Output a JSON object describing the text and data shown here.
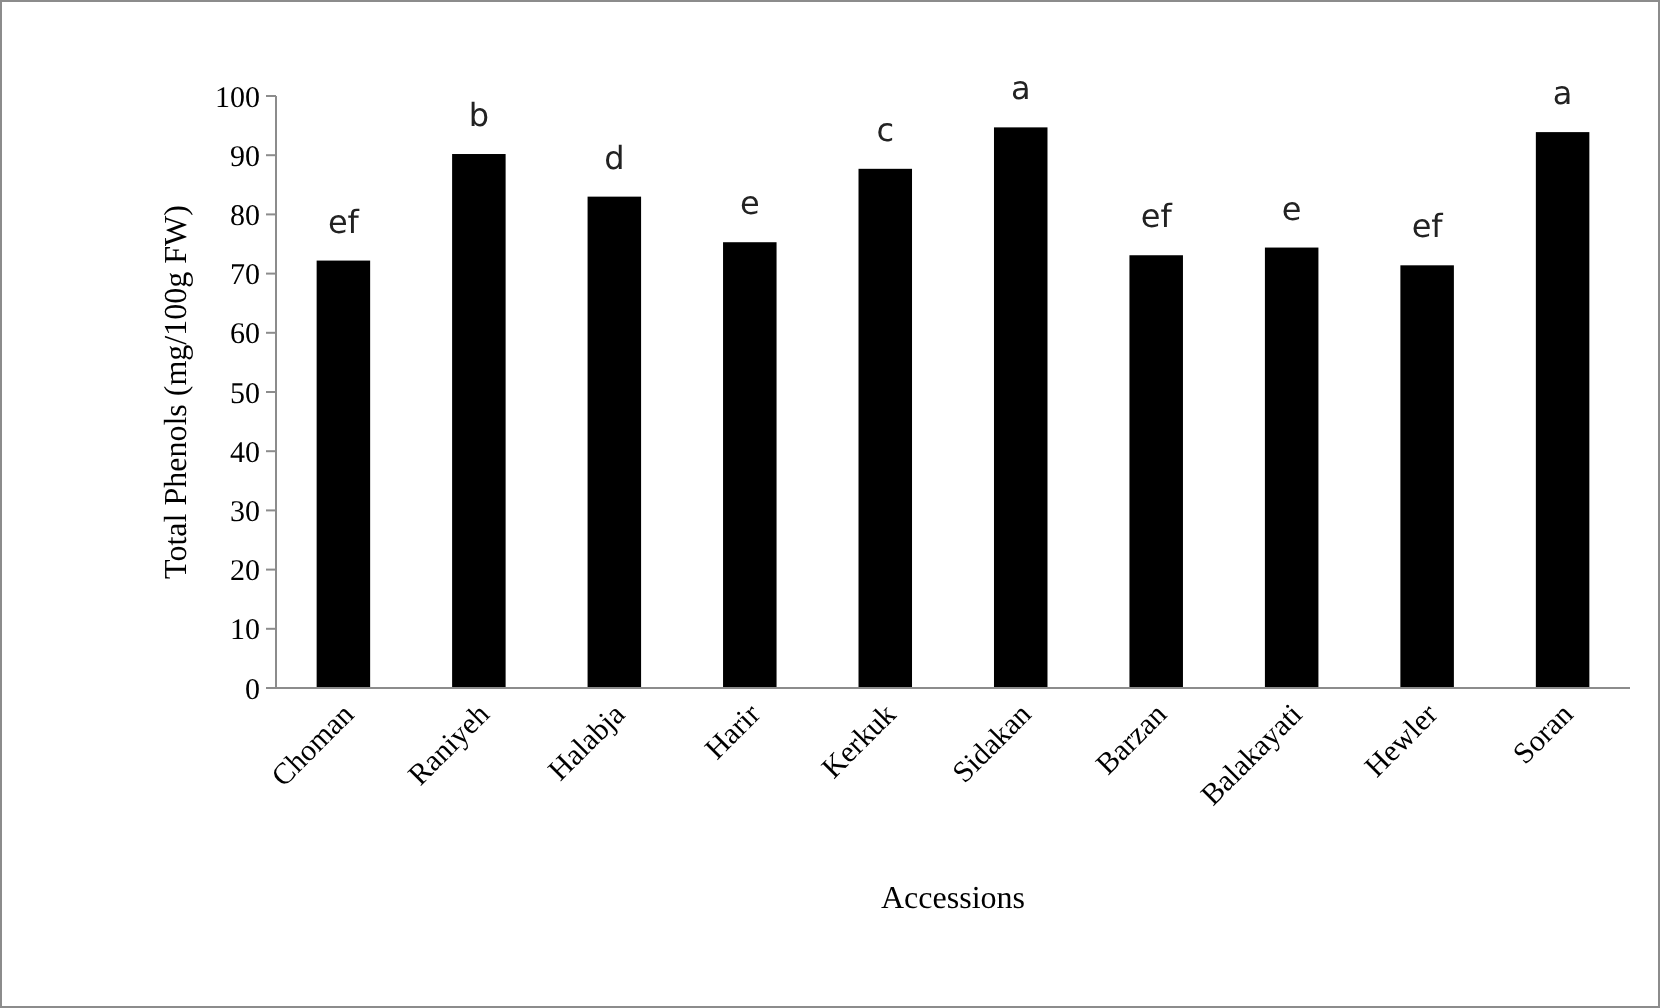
{
  "chart_data": {
    "type": "bar",
    "xlabel": "Accessions",
    "ylabel": "Total Phenols (mg/100g  FW)",
    "categories": [
      "Choman",
      "Raniyeh",
      "Halabja",
      "Harir",
      "Kerkuk",
      "Sidakan",
      "Barzan",
      "Balakayati",
      "Hewler",
      "Soran"
    ],
    "values": [
      72.2,
      90.2,
      83.0,
      75.3,
      87.7,
      94.7,
      73.1,
      74.4,
      71.4,
      93.9
    ],
    "color": "#000000",
    "ylim": [
      0,
      100
    ],
    "yticks": [
      0,
      10,
      20,
      30,
      40,
      50,
      60,
      70,
      80,
      90,
      100
    ],
    "grid": false,
    "annotations": [
      {
        "text": "ef",
        "x": "Choman",
        "y": 72.2
      },
      {
        "text": "b",
        "x": "Raniyeh",
        "y": 90.2
      },
      {
        "text": "d",
        "x": "Halabja",
        "y": 83.0
      },
      {
        "text": "e",
        "x": "Harir",
        "y": 75.3
      },
      {
        "text": "c",
        "x": "Kerkuk",
        "y": 87.7
      },
      {
        "text": "a",
        "x": "Sidakan",
        "y": 94.7
      },
      {
        "text": "ef",
        "x": "Barzan",
        "y": 73.1
      },
      {
        "text": "e",
        "x": "Balakayati",
        "y": 74.4
      },
      {
        "text": "ef",
        "x": "Hewler",
        "y": 71.4
      },
      {
        "text": "a",
        "x": "Soran",
        "y": 93.9
      }
    ]
  }
}
